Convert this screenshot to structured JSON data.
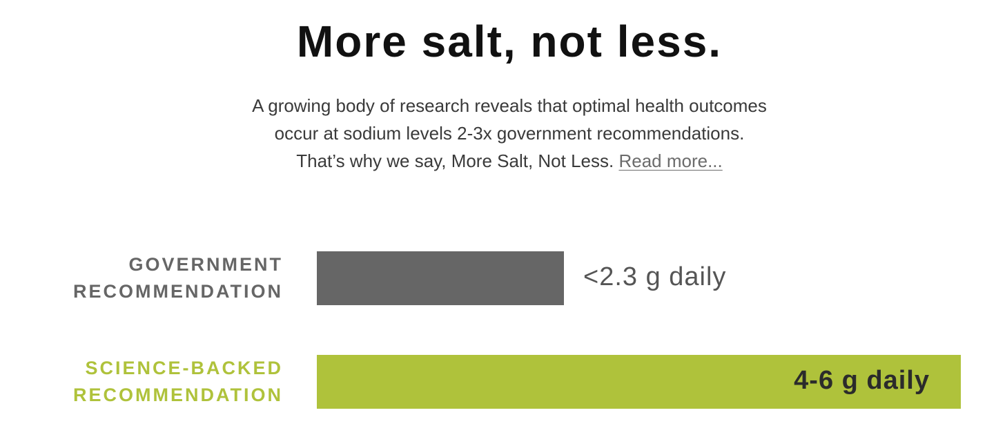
{
  "header": {
    "title": "More salt, not less."
  },
  "description": {
    "line1": "A growing body of research reveals that optimal health outcomes",
    "line2": "occur at sodium levels 2-3x government recommendations.",
    "line3": "That’s why we say, More Salt, Not Less.",
    "link": "Read more..."
  },
  "chart_data": {
    "type": "bar",
    "orientation": "horizontal",
    "categories": [
      "GOVERNMENT RECOMMENDATION",
      "SCIENCE-BACKED RECOMMENDATION"
    ],
    "category_lines": [
      [
        "GOVERNMENT",
        "RECOMMENDATION"
      ],
      [
        "SCIENCE-BACKED",
        "RECOMMENDATION"
      ]
    ],
    "values": [
      2.3,
      6
    ],
    "value_labels": [
      "<2.3 g daily",
      "4-6 g daily"
    ],
    "unit": "g daily",
    "xlim": [
      0,
      6
    ],
    "grid": false,
    "colors": {
      "government": "#666666",
      "science": "#afc23b",
      "government_label": "#666666",
      "science_label": "#afc23b"
    }
  }
}
